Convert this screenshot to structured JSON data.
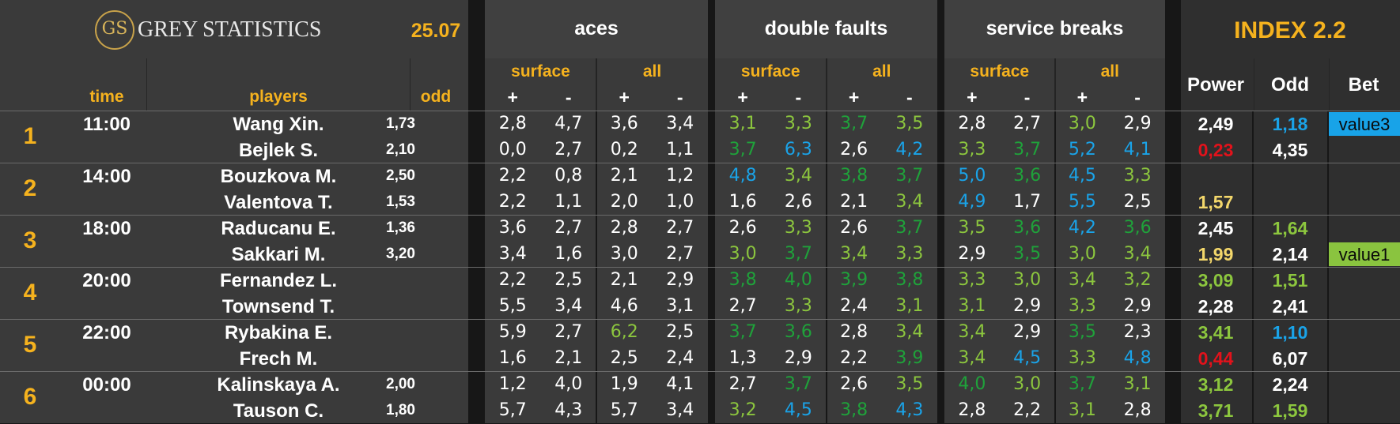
{
  "header": {
    "logo_monogram": "GS",
    "logo_text": "GREY STATISTICS",
    "date": "25.07",
    "groups": [
      "aces",
      "double faults",
      "service breaks"
    ],
    "index_title": "INDEX 2.2",
    "sub_surface": "surface",
    "sub_all": "all",
    "plus": "+",
    "minus": "-",
    "col_time": "time",
    "col_players": "players",
    "col_odd": "odd",
    "col_power": "Power",
    "col_odd2": "Odd",
    "col_bet": "Bet"
  },
  "colors": {
    "gold": "#f5b21e",
    "white": "#ffffff",
    "green": "#1fa23a",
    "light_green": "#8cc63e",
    "blue": "#1aa3e8",
    "red": "#e3121b",
    "pale_gold": "#f3d76b",
    "badge_blue": "#18a3e8",
    "badge_green": "#8ac43f"
  },
  "matches": [
    {
      "num": "1",
      "time": "11:00",
      "rows": [
        {
          "player": "Wang Xin.",
          "odd": "1,73",
          "stats": [
            [
              "2,8",
              "w"
            ],
            [
              "4,7",
              "w"
            ],
            [
              "3,6",
              "w"
            ],
            [
              "3,4",
              "w"
            ],
            [
              "3,1",
              "lg"
            ],
            [
              "3,3",
              "lg"
            ],
            [
              "3,7",
              "g"
            ],
            [
              "3,5",
              "lg"
            ],
            [
              "2,8",
              "w"
            ],
            [
              "2,7",
              "w"
            ],
            [
              "3,0",
              "lg"
            ],
            [
              "2,9",
              "w"
            ]
          ],
          "power": [
            "2,49",
            "w"
          ],
          "odd2": [
            "1,18",
            "b"
          ],
          "bet": {
            "text": "value3",
            "style": "blue"
          }
        },
        {
          "player": "Bejlek S.",
          "odd": "2,10",
          "stats": [
            [
              "0,0",
              "w"
            ],
            [
              "2,7",
              "w"
            ],
            [
              "0,2",
              "w"
            ],
            [
              "1,1",
              "w"
            ],
            [
              "3,7",
              "g"
            ],
            [
              "6,3",
              "b"
            ],
            [
              "2,6",
              "w"
            ],
            [
              "4,2",
              "b"
            ],
            [
              "3,3",
              "lg"
            ],
            [
              "3,7",
              "g"
            ],
            [
              "5,2",
              "b"
            ],
            [
              "4,1",
              "b"
            ]
          ],
          "power": [
            "0,23",
            "r"
          ],
          "odd2": [
            "4,35",
            "w"
          ],
          "bet": null
        }
      ]
    },
    {
      "num": "2",
      "time": "14:00",
      "rows": [
        {
          "player": "Bouzkova M.",
          "odd": "2,50",
          "stats": [
            [
              "2,2",
              "w"
            ],
            [
              "0,8",
              "w"
            ],
            [
              "2,1",
              "w"
            ],
            [
              "1,2",
              "w"
            ],
            [
              "4,8",
              "b"
            ],
            [
              "3,4",
              "lg"
            ],
            [
              "3,8",
              "g"
            ],
            [
              "3,7",
              "g"
            ],
            [
              "5,0",
              "b"
            ],
            [
              "3,6",
              "g"
            ],
            [
              "4,5",
              "b"
            ],
            [
              "3,3",
              "lg"
            ]
          ],
          "power": null,
          "odd2": null,
          "bet": null
        },
        {
          "player": "Valentova T.",
          "odd": "1,53",
          "stats": [
            [
              "2,2",
              "w"
            ],
            [
              "1,1",
              "w"
            ],
            [
              "2,0",
              "w"
            ],
            [
              "1,0",
              "w"
            ],
            [
              "1,6",
              "w"
            ],
            [
              "2,6",
              "w"
            ],
            [
              "2,1",
              "w"
            ],
            [
              "3,4",
              "lg"
            ],
            [
              "4,9",
              "b"
            ],
            [
              "1,7",
              "w"
            ],
            [
              "5,5",
              "b"
            ],
            [
              "2,5",
              "w"
            ]
          ],
          "power": [
            "1,57",
            "pg"
          ],
          "odd2": null,
          "bet": null
        }
      ]
    },
    {
      "num": "3",
      "time": "18:00",
      "rows": [
        {
          "player": "Raducanu E.",
          "odd": "1,36",
          "stats": [
            [
              "3,6",
              "w"
            ],
            [
              "2,7",
              "w"
            ],
            [
              "2,8",
              "w"
            ],
            [
              "2,7",
              "w"
            ],
            [
              "2,6",
              "w"
            ],
            [
              "3,3",
              "lg"
            ],
            [
              "2,6",
              "w"
            ],
            [
              "3,7",
              "g"
            ],
            [
              "3,5",
              "lg"
            ],
            [
              "3,6",
              "g"
            ],
            [
              "4,2",
              "b"
            ],
            [
              "3,6",
              "g"
            ]
          ],
          "power": [
            "2,45",
            "w"
          ],
          "odd2": [
            "1,64",
            "lg"
          ],
          "bet": null
        },
        {
          "player": "Sakkari M.",
          "odd": "3,20",
          "stats": [
            [
              "3,4",
              "w"
            ],
            [
              "1,6",
              "w"
            ],
            [
              "3,0",
              "w"
            ],
            [
              "2,7",
              "w"
            ],
            [
              "3,0",
              "lg"
            ],
            [
              "3,7",
              "g"
            ],
            [
              "3,4",
              "lg"
            ],
            [
              "3,3",
              "lg"
            ],
            [
              "2,9",
              "w"
            ],
            [
              "3,5",
              "g"
            ],
            [
              "3,0",
              "lg"
            ],
            [
              "3,4",
              "lg"
            ]
          ],
          "power": [
            "1,99",
            "pg"
          ],
          "odd2": [
            "2,14",
            "w"
          ],
          "bet": {
            "text": "value1",
            "style": "green"
          }
        }
      ]
    },
    {
      "num": "4",
      "time": "20:00",
      "rows": [
        {
          "player": "Fernandez L.",
          "odd": "",
          "stats": [
            [
              "2,2",
              "w"
            ],
            [
              "2,5",
              "w"
            ],
            [
              "2,1",
              "w"
            ],
            [
              "2,9",
              "w"
            ],
            [
              "3,8",
              "g"
            ],
            [
              "4,0",
              "g"
            ],
            [
              "3,9",
              "g"
            ],
            [
              "3,8",
              "g"
            ],
            [
              "3,3",
              "lg"
            ],
            [
              "3,0",
              "lg"
            ],
            [
              "3,4",
              "lg"
            ],
            [
              "3,2",
              "lg"
            ]
          ],
          "power": [
            "3,09",
            "lg"
          ],
          "odd2": [
            "1,51",
            "lg"
          ],
          "bet": null
        },
        {
          "player": "Townsend T.",
          "odd": "",
          "stats": [
            [
              "5,5",
              "w"
            ],
            [
              "3,4",
              "w"
            ],
            [
              "4,6",
              "w"
            ],
            [
              "3,1",
              "w"
            ],
            [
              "2,7",
              "w"
            ],
            [
              "3,3",
              "lg"
            ],
            [
              "2,4",
              "w"
            ],
            [
              "3,1",
              "lg"
            ],
            [
              "3,1",
              "lg"
            ],
            [
              "2,9",
              "w"
            ],
            [
              "3,3",
              "lg"
            ],
            [
              "2,9",
              "w"
            ]
          ],
          "power": [
            "2,28",
            "w"
          ],
          "odd2": [
            "2,41",
            "w"
          ],
          "bet": null
        }
      ]
    },
    {
      "num": "5",
      "time": "22:00",
      "rows": [
        {
          "player": "Rybakina E.",
          "odd": "",
          "stats": [
            [
              "5,9",
              "w"
            ],
            [
              "2,7",
              "w"
            ],
            [
              "6,2",
              "lg"
            ],
            [
              "2,5",
              "w"
            ],
            [
              "3,7",
              "g"
            ],
            [
              "3,6",
              "g"
            ],
            [
              "2,8",
              "w"
            ],
            [
              "3,4",
              "lg"
            ],
            [
              "3,4",
              "lg"
            ],
            [
              "2,9",
              "w"
            ],
            [
              "3,5",
              "g"
            ],
            [
              "2,3",
              "w"
            ]
          ],
          "power": [
            "3,41",
            "lg"
          ],
          "odd2": [
            "1,10",
            "b"
          ],
          "bet": null
        },
        {
          "player": "Frech M.",
          "odd": "",
          "stats": [
            [
              "1,6",
              "w"
            ],
            [
              "2,1",
              "w"
            ],
            [
              "2,5",
              "w"
            ],
            [
              "2,4",
              "w"
            ],
            [
              "1,3",
              "w"
            ],
            [
              "2,9",
              "w"
            ],
            [
              "2,2",
              "w"
            ],
            [
              "3,9",
              "g"
            ],
            [
              "3,4",
              "lg"
            ],
            [
              "4,5",
              "b"
            ],
            [
              "3,3",
              "lg"
            ],
            [
              "4,8",
              "b"
            ]
          ],
          "power": [
            "0,44",
            "r"
          ],
          "odd2": [
            "6,07",
            "w"
          ],
          "bet": null
        }
      ]
    },
    {
      "num": "6",
      "time": "00:00",
      "rows": [
        {
          "player": "Kalinskaya A.",
          "odd": "2,00",
          "stats": [
            [
              "1,2",
              "w"
            ],
            [
              "4,0",
              "w"
            ],
            [
              "1,9",
              "w"
            ],
            [
              "4,1",
              "w"
            ],
            [
              "2,7",
              "w"
            ],
            [
              "3,7",
              "g"
            ],
            [
              "2,6",
              "w"
            ],
            [
              "3,5",
              "lg"
            ],
            [
              "4,0",
              "g"
            ],
            [
              "3,0",
              "lg"
            ],
            [
              "3,7",
              "g"
            ],
            [
              "3,1",
              "lg"
            ]
          ],
          "power": [
            "3,12",
            "lg"
          ],
          "odd2": [
            "2,24",
            "w"
          ],
          "bet": null
        },
        {
          "player": "Tauson C.",
          "odd": "1,80",
          "stats": [
            [
              "5,7",
              "w"
            ],
            [
              "4,3",
              "w"
            ],
            [
              "5,7",
              "w"
            ],
            [
              "3,4",
              "w"
            ],
            [
              "3,2",
              "lg"
            ],
            [
              "4,5",
              "b"
            ],
            [
              "3,8",
              "g"
            ],
            [
              "4,3",
              "b"
            ],
            [
              "2,8",
              "w"
            ],
            [
              "2,2",
              "w"
            ],
            [
              "3,1",
              "lg"
            ],
            [
              "2,8",
              "w"
            ]
          ],
          "power": [
            "3,71",
            "lg"
          ],
          "odd2": [
            "1,59",
            "lg"
          ],
          "bet": null
        }
      ]
    }
  ]
}
